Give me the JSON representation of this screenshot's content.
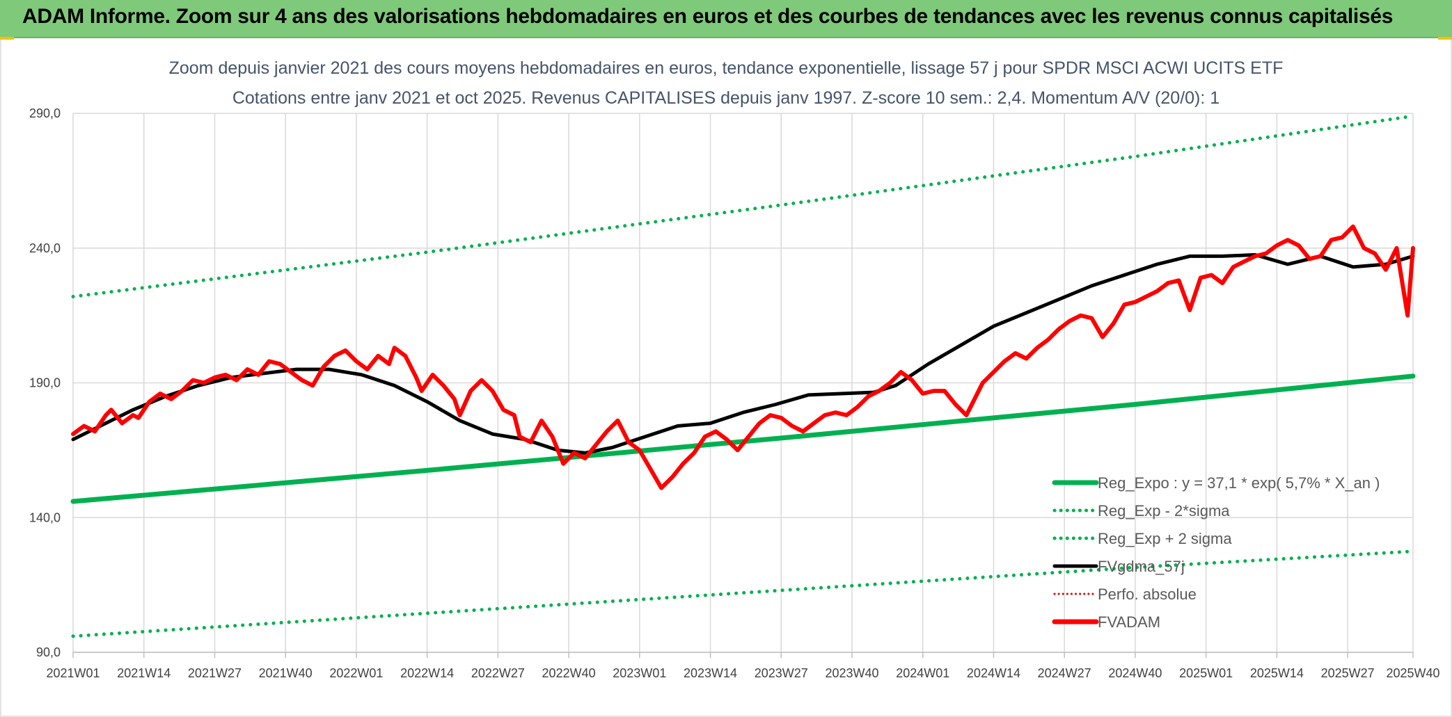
{
  "banner": {
    "title": "ADAM Informe. Zoom sur 4 ans des valorisations hebdomadaires en euros et des courbes de tendances avec les revenus connus capitalisés"
  },
  "chart_data": {
    "type": "line",
    "title_line1": "Zoom depuis janvier 2021 des cours moyens hebdomadaires en euros, tendance exponentielle, lissage 57 j pour SPDR MSCI ACWI UCITS ETF",
    "title_line2": "Cotations entre janv 2021 et oct 2025. Revenus CAPITALISES depuis janv 1997. Z-score 10 sem.: 2,4. Momentum A/V (20/0): 1",
    "ylim": [
      90,
      290
    ],
    "y_ticks": [
      "90,0",
      "140,0",
      "190,0",
      "240,0",
      "290,0"
    ],
    "y_tick_values": [
      90,
      140,
      190,
      240,
      290
    ],
    "x_range": [
      1,
      247
    ],
    "x_ticks": [
      "2021W01",
      "2021W14",
      "2021W27",
      "2021W40",
      "2022W01",
      "2022W14",
      "2022W27",
      "2022W40",
      "2023W01",
      "2023W14",
      "2023W27",
      "2023W40",
      "2024W01",
      "2024W14",
      "2024W27",
      "2024W40",
      "2025W01",
      "2025W14",
      "2025W27",
      "2025W40"
    ],
    "x_tick_weeks": [
      1,
      14,
      27,
      40,
      53,
      66,
      79,
      92,
      105,
      118,
      131,
      144,
      157,
      170,
      183,
      196,
      209,
      222,
      235,
      248
    ],
    "grid": true,
    "legend_position": "right-middle",
    "legend": [
      "Reg_Expo : y = 37,1 * exp( 5,7% *  X_an )",
      "Reg_Exp - 2*sigma",
      "Reg_Exp + 2 sigma",
      "FVgdma_57j",
      "Perfo. absolue",
      "FVADAM"
    ],
    "colors": {
      "reg_expo": "#00b050",
      "reg_bands": "#00b050",
      "fvgdma": "#000000",
      "perfo": "#e00000",
      "fvadam": "#ff0000",
      "grid": "#d9d9d9"
    },
    "series": [
      {
        "name": "Reg_Expo : y = 37,1 * exp( 5,7% *  X_an )",
        "style": "solid-thick",
        "points": [
          [
            1,
            146.0
          ],
          [
            66,
            157.5
          ],
          [
            131,
            169.5
          ],
          [
            196,
            182.0
          ],
          [
            247,
            192.5
          ]
        ]
      },
      {
        "name": "Reg_Exp - 2*sigma",
        "style": "dotted",
        "points": [
          [
            1,
            96.0
          ],
          [
            66,
            104.5
          ],
          [
            131,
            113.0
          ],
          [
            196,
            121.5
          ],
          [
            247,
            127.5
          ]
        ]
      },
      {
        "name": "Reg_Exp + 2 sigma",
        "style": "dotted",
        "points": [
          [
            1,
            222.0
          ],
          [
            66,
            238.5
          ],
          [
            131,
            256.0
          ],
          [
            196,
            274.0
          ],
          [
            247,
            289.0
          ]
        ]
      },
      {
        "name": "FVgdma_57j",
        "style": "solid-black",
        "points": [
          [
            1,
            169
          ],
          [
            6,
            174
          ],
          [
            12,
            180
          ],
          [
            18,
            185
          ],
          [
            24,
            189
          ],
          [
            30,
            192
          ],
          [
            36,
            193.5
          ],
          [
            42,
            195
          ],
          [
            48,
            195
          ],
          [
            54,
            193
          ],
          [
            60,
            189
          ],
          [
            66,
            183
          ],
          [
            72,
            176
          ],
          [
            78,
            171
          ],
          [
            84,
            169
          ],
          [
            90,
            165
          ],
          [
            95,
            164
          ],
          [
            100,
            166
          ],
          [
            106,
            170
          ],
          [
            112,
            174
          ],
          [
            118,
            175
          ],
          [
            124,
            179
          ],
          [
            130,
            182
          ],
          [
            136,
            185.5
          ],
          [
            142,
            186
          ],
          [
            148,
            186.5
          ],
          [
            152,
            189
          ],
          [
            158,
            197
          ],
          [
            164,
            204
          ],
          [
            170,
            211
          ],
          [
            176,
            216
          ],
          [
            182,
            221
          ],
          [
            188,
            226
          ],
          [
            194,
            230
          ],
          [
            200,
            234
          ],
          [
            206,
            237
          ],
          [
            212,
            237
          ],
          [
            218,
            237.5
          ],
          [
            224,
            234
          ],
          [
            230,
            237
          ],
          [
            236,
            233
          ],
          [
            242,
            234
          ],
          [
            247,
            237
          ]
        ]
      },
      {
        "name": "FVADAM",
        "style": "solid-red",
        "points": [
          [
            1,
            171
          ],
          [
            3,
            174
          ],
          [
            5,
            172
          ],
          [
            7,
            178
          ],
          [
            8,
            180
          ],
          [
            10,
            175
          ],
          [
            12,
            178
          ],
          [
            13,
            177
          ],
          [
            15,
            183
          ],
          [
            17,
            186
          ],
          [
            19,
            184
          ],
          [
            21,
            187
          ],
          [
            23,
            191
          ],
          [
            25,
            190
          ],
          [
            27,
            192
          ],
          [
            29,
            193
          ],
          [
            31,
            191
          ],
          [
            33,
            195
          ],
          [
            35,
            193
          ],
          [
            37,
            198
          ],
          [
            39,
            197
          ],
          [
            41,
            194
          ],
          [
            43,
            191
          ],
          [
            45,
            189
          ],
          [
            47,
            196
          ],
          [
            49,
            200
          ],
          [
            51,
            202
          ],
          [
            53,
            198
          ],
          [
            55,
            195
          ],
          [
            57,
            200
          ],
          [
            59,
            197
          ],
          [
            60,
            203
          ],
          [
            62,
            200
          ],
          [
            64,
            192
          ],
          [
            65,
            187
          ],
          [
            67,
            193
          ],
          [
            69,
            189
          ],
          [
            71,
            184
          ],
          [
            72,
            178
          ],
          [
            74,
            187
          ],
          [
            76,
            191
          ],
          [
            78,
            187
          ],
          [
            80,
            180
          ],
          [
            82,
            178
          ],
          [
            83,
            170
          ],
          [
            85,
            168
          ],
          [
            87,
            176
          ],
          [
            89,
            170
          ],
          [
            91,
            160
          ],
          [
            93,
            164
          ],
          [
            95,
            162
          ],
          [
            97,
            167
          ],
          [
            99,
            172
          ],
          [
            101,
            176
          ],
          [
            103,
            168
          ],
          [
            105,
            165
          ],
          [
            107,
            158
          ],
          [
            109,
            151
          ],
          [
            111,
            155
          ],
          [
            113,
            160
          ],
          [
            115,
            164
          ],
          [
            117,
            170
          ],
          [
            119,
            172
          ],
          [
            121,
            169
          ],
          [
            123,
            165
          ],
          [
            125,
            170
          ],
          [
            127,
            175
          ],
          [
            129,
            178
          ],
          [
            131,
            177
          ],
          [
            133,
            174
          ],
          [
            135,
            172
          ],
          [
            137,
            175
          ],
          [
            139,
            178
          ],
          [
            141,
            179
          ],
          [
            143,
            178
          ],
          [
            145,
            181
          ],
          [
            147,
            185
          ],
          [
            149,
            187
          ],
          [
            151,
            190
          ],
          [
            153,
            194
          ],
          [
            155,
            191
          ],
          [
            157,
            186
          ],
          [
            159,
            187
          ],
          [
            161,
            187
          ],
          [
            163,
            182
          ],
          [
            165,
            178
          ],
          [
            166,
            182
          ],
          [
            168,
            190
          ],
          [
            170,
            194
          ],
          [
            172,
            198
          ],
          [
            174,
            201
          ],
          [
            176,
            199
          ],
          [
            178,
            203
          ],
          [
            180,
            206
          ],
          [
            182,
            210
          ],
          [
            184,
            213
          ],
          [
            186,
            215
          ],
          [
            188,
            214
          ],
          [
            190,
            207
          ],
          [
            192,
            212
          ],
          [
            194,
            219
          ],
          [
            196,
            220
          ],
          [
            198,
            222
          ],
          [
            200,
            224
          ],
          [
            202,
            227
          ],
          [
            204,
            228
          ],
          [
            206,
            217
          ],
          [
            208,
            229
          ],
          [
            210,
            230
          ],
          [
            212,
            227
          ],
          [
            214,
            233
          ],
          [
            216,
            235
          ],
          [
            218,
            237
          ],
          [
            220,
            238
          ],
          [
            222,
            241
          ],
          [
            224,
            243
          ],
          [
            226,
            241
          ],
          [
            228,
            236
          ],
          [
            230,
            237
          ],
          [
            232,
            243
          ],
          [
            234,
            244
          ],
          [
            236,
            248
          ],
          [
            238,
            240
          ],
          [
            240,
            238
          ],
          [
            242,
            232
          ],
          [
            244,
            240
          ],
          [
            246,
            215
          ],
          [
            247,
            240
          ]
        ]
      }
    ]
  }
}
